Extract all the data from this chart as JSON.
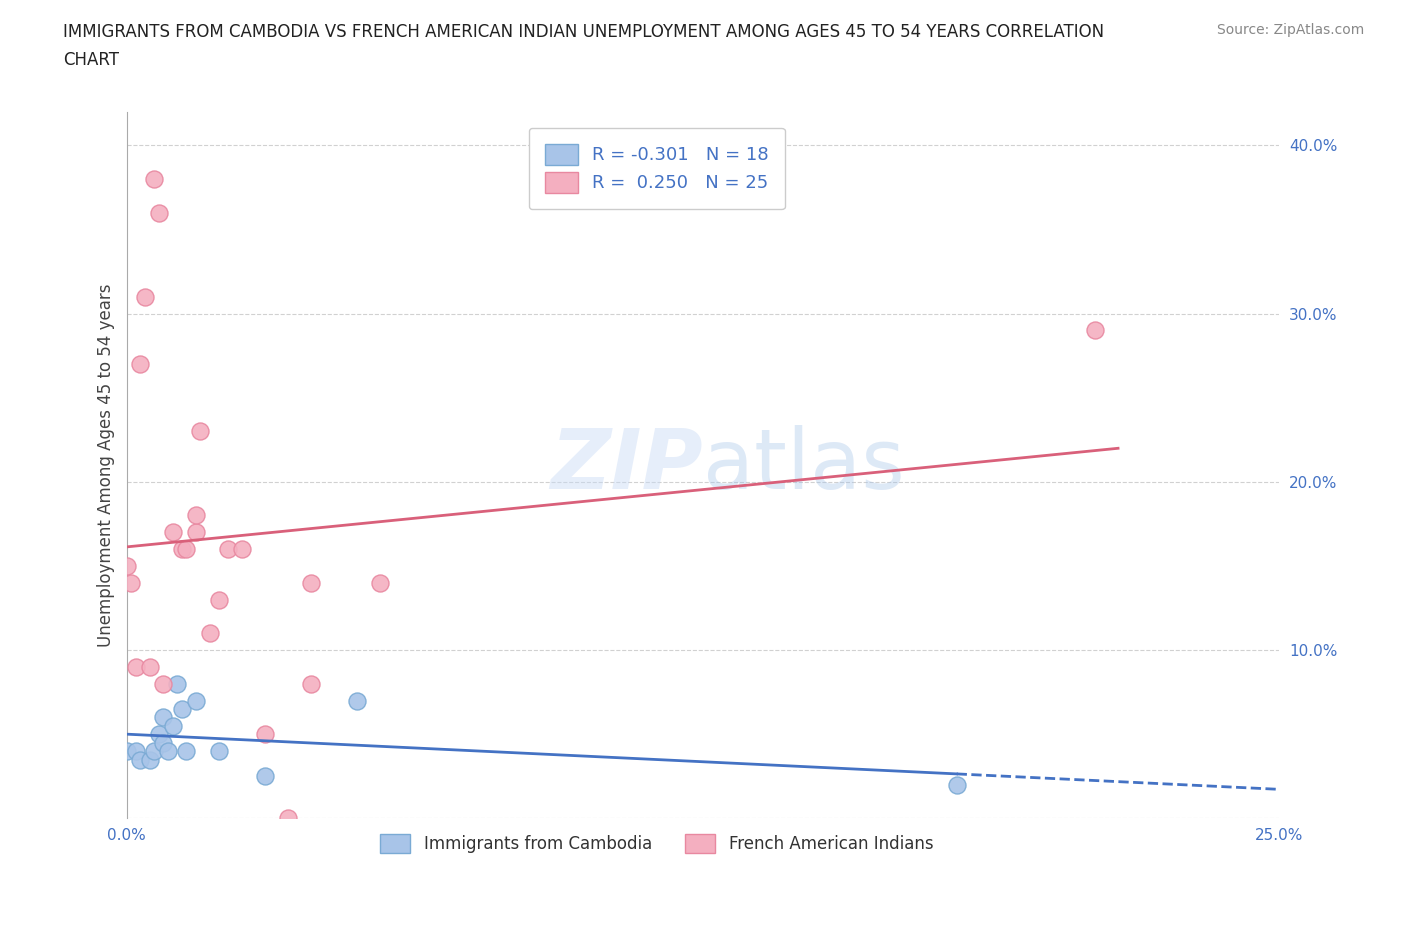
{
  "title": "IMMIGRANTS FROM CAMBODIA VS FRENCH AMERICAN INDIAN UNEMPLOYMENT AMONG AGES 45 TO 54 YEARS CORRELATION\nCHART",
  "source": "Source: ZipAtlas.com",
  "ylabel": "Unemployment Among Ages 45 to 54 years",
  "watermark": "ZIPatlas",
  "xlim": [
    0.0,
    0.25
  ],
  "ylim": [
    0.0,
    0.42
  ],
  "xticks": [
    0.0,
    0.05,
    0.1,
    0.15,
    0.2,
    0.25
  ],
  "yticks": [
    0.0,
    0.1,
    0.2,
    0.3,
    0.4
  ],
  "cambodia_color": "#a8c4e8",
  "cambodia_edge": "#7aaad4",
  "french_color": "#f4afc0",
  "french_edge": "#e888a0",
  "cambodia_line_color": "#4472c4",
  "french_line_color": "#d9607a",
  "background_color": "#ffffff",
  "grid_color": "#cccccc",
  "legend_text_color": "#4472c4",
  "R_cambodia": -0.301,
  "N_cambodia": 18,
  "R_french": 0.25,
  "N_french": 25,
  "cambodia_x": [
    0.0,
    0.002,
    0.003,
    0.005,
    0.006,
    0.007,
    0.008,
    0.008,
    0.009,
    0.01,
    0.011,
    0.012,
    0.013,
    0.015,
    0.02,
    0.03,
    0.05,
    0.18
  ],
  "cambodia_y": [
    0.04,
    0.04,
    0.035,
    0.035,
    0.04,
    0.05,
    0.045,
    0.06,
    0.04,
    0.055,
    0.08,
    0.065,
    0.04,
    0.07,
    0.04,
    0.025,
    0.07,
    0.02
  ],
  "french_x": [
    0.0,
    0.001,
    0.002,
    0.003,
    0.004,
    0.005,
    0.006,
    0.007,
    0.008,
    0.01,
    0.012,
    0.013,
    0.015,
    0.015,
    0.016,
    0.018,
    0.02,
    0.022,
    0.025,
    0.03,
    0.035,
    0.04,
    0.055,
    0.21,
    0.04
  ],
  "french_y": [
    0.15,
    0.14,
    0.09,
    0.27,
    0.31,
    0.09,
    0.38,
    0.36,
    0.08,
    0.17,
    0.16,
    0.16,
    0.17,
    0.18,
    0.23,
    0.11,
    0.13,
    0.16,
    0.16,
    0.05,
    0.0,
    0.14,
    0.14,
    0.29,
    0.08
  ],
  "title_fontsize": 12,
  "label_fontsize": 12,
  "tick_fontsize": 11,
  "legend_fontsize": 13,
  "source_fontsize": 10,
  "french_line_xend": 0.215
}
